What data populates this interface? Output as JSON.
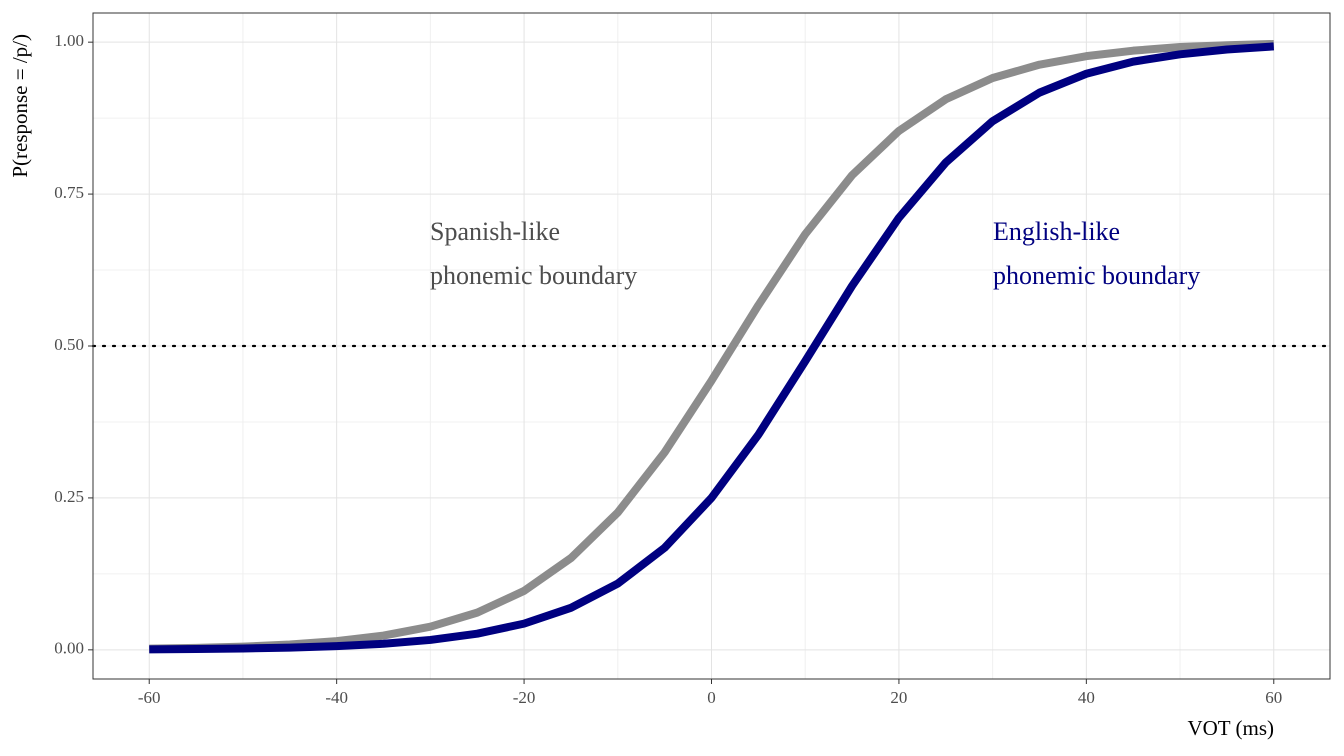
{
  "chart_data": {
    "type": "line",
    "x_label": "VOT (ms)",
    "y_label": "P(response = /p/)",
    "x": [
      -60,
      -55,
      -50,
      -45,
      -40,
      -35,
      -30,
      -25,
      -20,
      -15,
      -10,
      -5,
      0,
      5,
      10,
      15,
      20,
      25,
      30,
      35,
      40,
      45,
      50,
      55,
      60
    ],
    "series": [
      {
        "name": "Spanish-like",
        "color": "#8c8c8c",
        "values": [
          0.002,
          0.0032,
          0.0053,
          0.0087,
          0.0143,
          0.0234,
          0.0381,
          0.0612,
          0.097,
          0.151,
          0.226,
          0.325,
          0.443,
          0.567,
          0.684,
          0.781,
          0.854,
          0.906,
          0.941,
          0.963,
          0.977,
          0.986,
          0.992,
          0.995,
          0.997
        ]
      },
      {
        "name": "English-like",
        "color": "#000080",
        "values": [
          0.0008,
          0.0014,
          0.0022,
          0.0037,
          0.0061,
          0.01,
          0.0163,
          0.0266,
          0.0431,
          0.0691,
          0.109,
          0.168,
          0.25,
          0.354,
          0.475,
          0.599,
          0.711,
          0.802,
          0.87,
          0.917,
          0.948,
          0.968,
          0.98,
          0.988,
          0.993
        ]
      }
    ],
    "annotations": [
      {
        "lines": [
          "Spanish-like",
          "phonemic boundary"
        ],
        "color": "#4d4d4d"
      },
      {
        "lines": [
          "English-like",
          "phonemic boundary"
        ],
        "color": "#000080"
      }
    ],
    "hline": 0.5,
    "xlim": [
      -66,
      66
    ],
    "ylim": [
      -0.048,
      1.048
    ],
    "xticks": [
      -60,
      -40,
      -20,
      0,
      20,
      40,
      60
    ],
    "yticks": [
      {
        "value": 0,
        "label": "0.00"
      },
      {
        "value": 0.25,
        "label": "0.25"
      },
      {
        "value": 0.5,
        "label": "0.50"
      },
      {
        "value": 0.75,
        "label": "0.75"
      },
      {
        "value": 1,
        "label": "1.00"
      }
    ],
    "grid": true
  }
}
